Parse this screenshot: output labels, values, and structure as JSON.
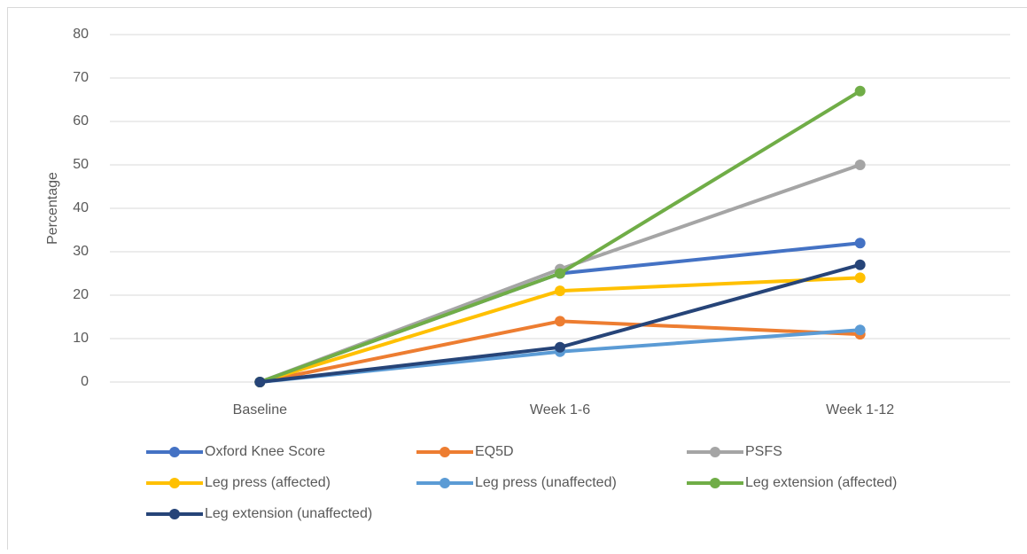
{
  "chart_data": {
    "type": "line",
    "y_label": "Percentage",
    "categories": [
      "Baseline",
      "Week 1-6",
      "Week 1-12"
    ],
    "series": [
      {
        "name": "Oxford Knee Score",
        "color": "#4472c4",
        "values": [
          0,
          25,
          32
        ]
      },
      {
        "name": "EQ5D",
        "color": "#ed7d31",
        "values": [
          0,
          14,
          11
        ]
      },
      {
        "name": "PSFS",
        "color": "#a5a5a5",
        "values": [
          0,
          26,
          50
        ]
      },
      {
        "name": "Leg press (affected)",
        "color": "#ffc000",
        "values": [
          0,
          21,
          24
        ]
      },
      {
        "name": "Leg press (unaffected)",
        "color": "#5b9bd5",
        "values": [
          0,
          7,
          12
        ]
      },
      {
        "name": "Leg extension (affected)",
        "color": "#70ad47",
        "values": [
          0,
          25,
          67
        ]
      },
      {
        "name": "Leg extension (unaffected)",
        "color": "#264478",
        "values": [
          0,
          8,
          27
        ]
      }
    ],
    "ylim": [
      0,
      80
    ],
    "yticks": [
      0,
      10,
      20,
      30,
      40,
      50,
      60,
      70,
      80
    ],
    "grid": true,
    "legend": "bottom"
  }
}
